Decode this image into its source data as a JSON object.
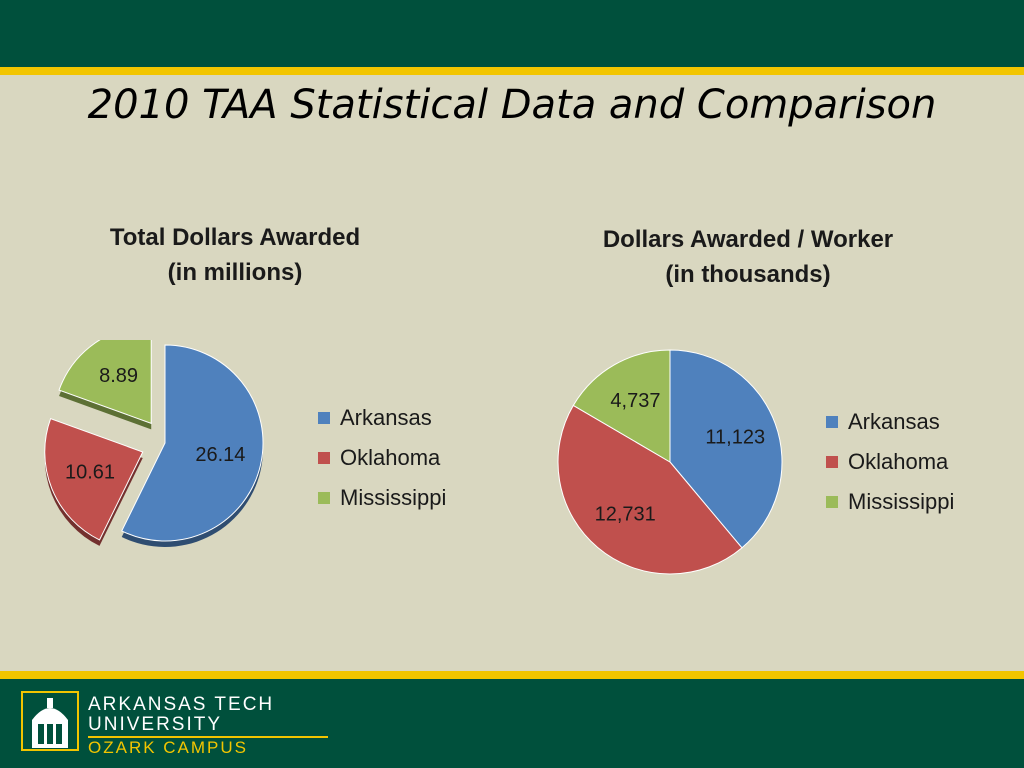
{
  "slide": {
    "title": "2010 TAA Statistical Data and Comparison"
  },
  "colors": {
    "top_band": "#00503c",
    "gold": "#f2c500",
    "background": "#d9d7c0"
  },
  "logo": {
    "line1": "ARKANSAS TECH",
    "line2": "UNIVERSITY",
    "line3": "OZARK CAMPUS",
    "icon": "building-tower-icon"
  },
  "chart_data": [
    {
      "type": "pie",
      "title": "Total Dollars Awarded",
      "subtitle": "(in millions)",
      "style": "3d-exploded",
      "categories": [
        "Arkansas",
        "Oklahoma",
        "Mississippi"
      ],
      "values": [
        26.14,
        10.61,
        8.89
      ],
      "value_labels": [
        "26.14",
        "10.61",
        "8.89"
      ],
      "colors": [
        "#4f81bd",
        "#c0504d",
        "#9bbb59"
      ],
      "legend_position": "right"
    },
    {
      "type": "pie",
      "title": "Dollars Awarded / Worker",
      "subtitle": "(in thousands)",
      "categories": [
        "Arkansas",
        "Oklahoma",
        "Mississippi"
      ],
      "values": [
        11123,
        12731,
        4737
      ],
      "value_labels": [
        "11,123",
        "12,731",
        "4,737"
      ],
      "colors": [
        "#4f81bd",
        "#c0504d",
        "#9bbb59"
      ],
      "legend_position": "right"
    }
  ]
}
